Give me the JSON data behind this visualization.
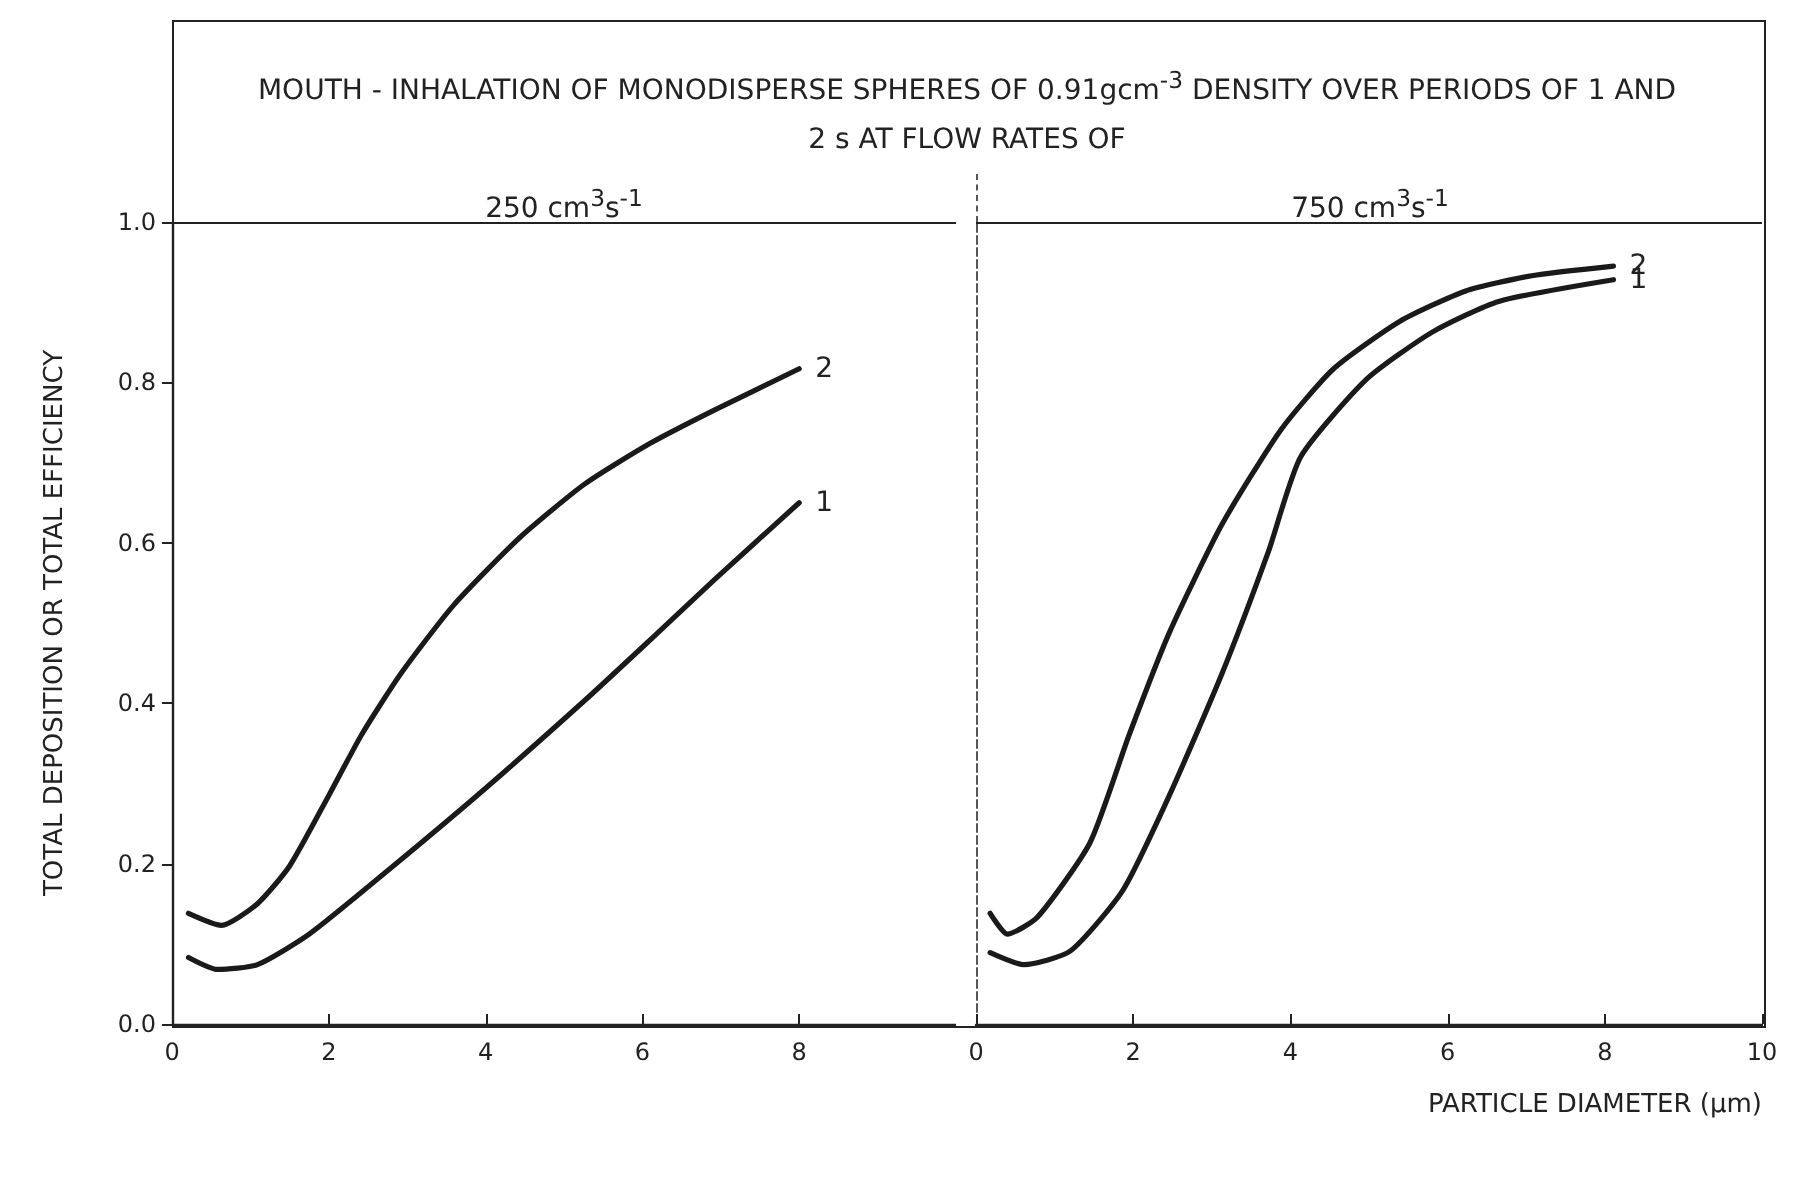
{
  "chart_data": [
    {
      "type": "line",
      "title": "MOUTH - INHALATION OF MONODISPERSE SPHERES OF 0.91gcm$^{-3}$ DENSITY OVER PERIODS OF 1 AND 2 s AT FLOW RATES OF",
      "subtitle": "250 cm$^{3}$s$^{-1}$",
      "ylabel": "TOTAL DEPOSITION OR TOTAL EFFICIENCY",
      "xlim": [
        0,
        10
      ],
      "xticks": [
        0,
        2,
        4,
        6,
        8,
        {
          "value": 10,
          "label": null
        }
      ],
      "ylim": [
        0,
        1
      ],
      "yticks": [
        {
          "value": 0,
          "label": "0.0"
        },
        0.2,
        0.4,
        0.6,
        0.8,
        {
          "value": 1,
          "label": "1.0"
        }
      ],
      "grid": false,
      "legend": false,
      "marker": "none",
      "line_style": "solid",
      "series": [
        {
          "name": "2",
          "color": "#1a1a1a",
          "x": [
            0.21,
            0.63,
            1.09,
            1.5,
            2.0,
            2.42,
            2.92,
            3.59,
            4.43,
            5.26,
            6.1,
            6.93,
            8.0
          ],
          "values": [
            0.138,
            0.123,
            0.15,
            0.197,
            0.285,
            0.361,
            0.437,
            0.522,
            0.606,
            0.673,
            0.724,
            0.766,
            0.817
          ]
        },
        {
          "name": "1",
          "color": "#1a1a1a",
          "x": [
            0.21,
            0.58,
            1.09,
            1.75,
            2.76,
            4.0,
            5.26,
            6.1,
            6.93,
            8.0
          ],
          "values": [
            0.083,
            0.068,
            0.074,
            0.112,
            0.192,
            0.294,
            0.403,
            0.479,
            0.555,
            0.65
          ]
        }
      ]
    },
    {
      "type": "line",
      "subtitle": "750 cm$^{3}$s$^{-1}$",
      "xlabel": "PARTICLE DIAMETER (µm)",
      "xlim": [
        0,
        10
      ],
      "xticks": [
        0,
        2,
        4,
        6,
        8,
        10
      ],
      "ylim": [
        0,
        1
      ],
      "tick_labels": "x",
      "grid": false,
      "legend": false,
      "marker": "none",
      "line_style": "solid",
      "series": [
        {
          "name": "2",
          "color": "#1a1a1a",
          "x": [
            0.18,
            0.4,
            0.78,
            1.45,
            1.95,
            2.46,
            3.13,
            3.88,
            4.55,
            5.39,
            6.23,
            7.07,
            8.11
          ],
          "values": [
            0.138,
            0.112,
            0.133,
            0.226,
            0.361,
            0.488,
            0.623,
            0.741,
            0.817,
            0.876,
            0.914,
            0.933,
            0.945
          ]
        },
        {
          "name": "1",
          "color": "#1a1a1a",
          "x": [
            0.18,
            0.61,
            1.2,
            1.87,
            2.46,
            3.13,
            3.72,
            4.13,
            4.97,
            5.81,
            6.65,
            8.11
          ],
          "values": [
            0.089,
            0.074,
            0.091,
            0.167,
            0.285,
            0.437,
            0.589,
            0.707,
            0.804,
            0.863,
            0.901,
            0.928
          ]
        }
      ]
    }
  ]
}
